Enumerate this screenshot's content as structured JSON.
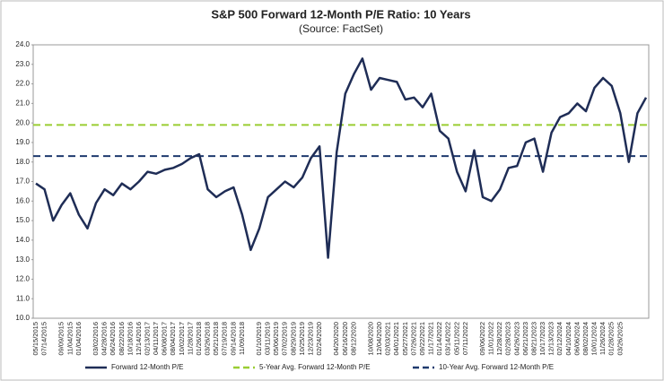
{
  "chart_data": {
    "type": "line",
    "title": "S&P 500 Forward 12-Month P/E Ratio: 10 Years",
    "subtitle": "(Source: FactSet)",
    "categories": [
      "05/15/2015",
      "07/14/2015",
      null,
      "09/09/2015",
      "11/04/2015",
      "01/04/2016",
      null,
      "03/02/2016",
      "04/28/2016",
      "06/24/2016",
      "08/22/2016",
      "10/18/2016",
      "12/14/2016",
      "02/13/2017",
      "04/11/2017",
      "06/08/2017",
      "08/04/2017",
      "10/02/2017",
      "11/28/2017",
      "01/26/2018",
      "03/26/2018",
      "05/21/2018",
      "07/19/2018",
      "09/14/2018",
      "11/09/2018",
      null,
      "01/10/2019",
      "03/11/2019",
      "05/06/2019",
      "07/02/2019",
      "08/29/2019",
      "10/25/2019",
      "12/23/2019",
      "02/24/2020",
      null,
      "04/20/2020",
      "06/16/2020",
      "08/12/2020",
      null,
      "10/08/2020",
      "12/04/2020",
      "02/03/2021",
      "04/01/2021",
      "05/27/2021",
      "07/26/2021",
      "09/22/2021",
      "11/17/2021",
      "01/14/2022",
      "03/14/2022",
      "05/11/2022",
      "07/11/2022",
      null,
      "09/06/2022",
      "11/01/2022",
      "12/28/2022",
      "02/28/2023",
      "04/26/2023",
      "06/21/2023",
      "08/21/2023",
      "10/17/2023",
      "12/13/2023",
      "02/12/2024",
      "04/10/2024",
      "06/06/2024",
      "08/02/2024",
      "10/01/2024",
      "11/26/2024",
      "01/28/2025",
      "03/26/2025",
      null,
      null,
      null
    ],
    "series": [
      {
        "name": "Forward 12-Month P/E",
        "color": "#1f2d56",
        "values": [
          16.9,
          16.6,
          15.0,
          15.8,
          16.4,
          15.3,
          14.6,
          15.9,
          16.6,
          16.3,
          16.9,
          16.6,
          17.0,
          17.5,
          17.4,
          17.6,
          17.7,
          17.9,
          18.2,
          18.4,
          16.6,
          16.2,
          16.5,
          16.7,
          15.3,
          13.5,
          14.6,
          16.2,
          16.6,
          17.0,
          16.7,
          17.2,
          18.2,
          18.8,
          13.1,
          18.5,
          21.5,
          22.5,
          23.3,
          21.7,
          22.3,
          22.2,
          22.1,
          21.2,
          21.3,
          20.8,
          21.5,
          19.6,
          19.2,
          17.5,
          16.5,
          18.6,
          16.2,
          16.0,
          16.6,
          17.7,
          17.8,
          19.0,
          19.2,
          17.5,
          19.5,
          20.3,
          20.5,
          21.0,
          20.6,
          21.8,
          22.3,
          21.9,
          20.5,
          18.0,
          20.5,
          21.3
        ]
      }
    ],
    "reference_lines": [
      {
        "name": "5-Year Avg. Forward 12-Month P/E",
        "color": "#9acd32",
        "value": 19.9
      },
      {
        "name": "10-Year Avg. Forward 12-Month P/E",
        "color": "#1f3a6e",
        "value": 18.3
      }
    ],
    "ylim": [
      10,
      24
    ],
    "yticks": [
      {
        "value": 10,
        "label": "10.0"
      },
      {
        "value": 11,
        "label": "11.0"
      },
      {
        "value": 12,
        "label": "12.0"
      },
      {
        "value": 13,
        "label": "13.0"
      },
      {
        "value": 14,
        "label": "14.0"
      },
      {
        "value": 15,
        "label": "15.0"
      },
      {
        "value": 16,
        "label": "16.0"
      },
      {
        "value": 17,
        "label": "17.0"
      },
      {
        "value": 18,
        "label": "18.0"
      },
      {
        "value": 19,
        "label": "19.0"
      },
      {
        "value": 20,
        "label": "20.0"
      },
      {
        "value": 21,
        "label": "21.0"
      },
      {
        "value": 22,
        "label": "22.0"
      },
      {
        "value": 23,
        "label": "23.0"
      },
      {
        "value": 24,
        "label": "24.0"
      }
    ],
    "grid": false
  }
}
